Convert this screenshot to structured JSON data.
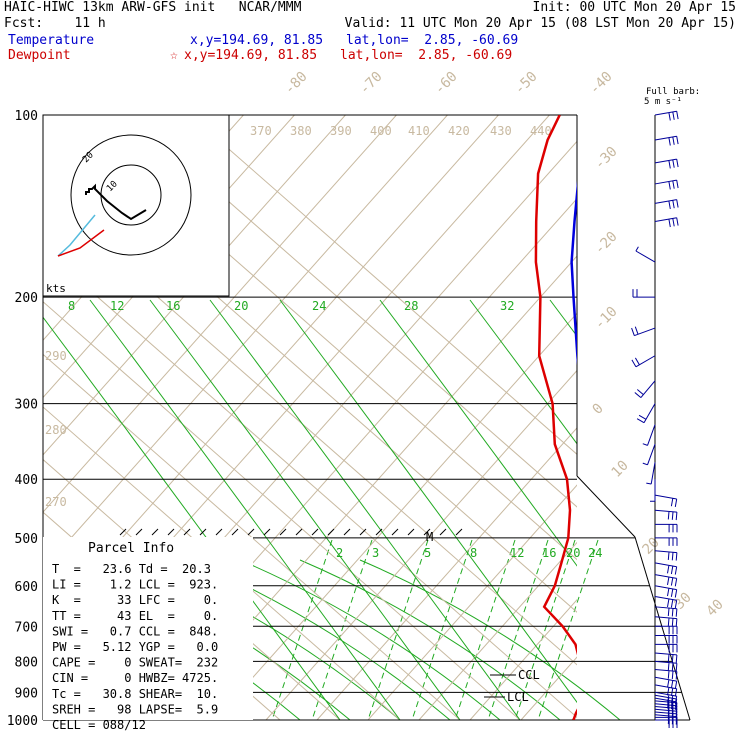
{
  "header": {
    "line1_left": "HAIC-HIWC 13km ARW-GFS init   NCAR/MMM",
    "line1_right": "Init: 00 UTC Mon 20 Apr 15",
    "line2_left": "Fcst:    11 h",
    "line2_right": "Valid: 11 UTC Mon 20 Apr 15 (08 LST Mon 20 Apr 15)",
    "temp_label": "Temperature",
    "temp_xy": "x,y=194.69, 81.85",
    "temp_latlon": "lat,lon=  2.85, -60.69",
    "dew_label": "Dewpoint",
    "dew_xy": "x,y=194.69, 81.85",
    "dew_latlon": "lat,lon=  2.85, -60.69",
    "dew_star": "☆"
  },
  "barb_legend": {
    "title": "Full barb:",
    "value": "5 m s⁻¹"
  },
  "hodograph": {
    "units": "kts",
    "ring_label": "10",
    "outer_label": "20"
  },
  "parcel_info": {
    "title": "Parcel Info",
    "rows": [
      "T  =   23.6 Td =  20.3",
      "LI =    1.2 LCL =  923.",
      "K  =     33 LFC =    0.",
      "TT =     43 EL  =    0.",
      "SWI =   0.7 CCL =  848.",
      "PW =   5.12 YGP =   0.0",
      "CAPE =    0 SWEAT=  232",
      "CIN =     0 HWBZ= 4725.",
      "Tc =   30.8 SHEAR=  10.",
      "SREH =   98 LAPSE=  5.9",
      "CELL = 088/12"
    ]
  },
  "markers": {
    "ccl": "CCL",
    "lcl": "LCL",
    "m": "M"
  },
  "colors": {
    "temperature": "#0000dd",
    "dewpoint": "#dd0000",
    "isotherm": "#c8b9a0",
    "mixing_ratio": "#22aa22",
    "hodo_cyan": "#55bbdd",
    "barb": "#000099"
  },
  "chart_data": {
    "type": "line",
    "yaxis": {
      "label": "",
      "scale": "log",
      "ticks": [
        100,
        200,
        300,
        400,
        500,
        600,
        700,
        800,
        900,
        1000
      ]
    },
    "isotherm_labels": [
      "-80",
      "-70",
      "-60",
      "-50",
      "-40",
      "-30",
      "-20",
      "-10",
      "0",
      "10",
      "20",
      "30",
      "40"
    ],
    "theta_labels": [
      "370",
      "380",
      "390",
      "400",
      "410",
      "420",
      "430",
      "440",
      "290",
      "280",
      "270"
    ],
    "mixing_ratio_labels_upper": [
      "8",
      "12",
      "16",
      "20",
      "24",
      "28",
      "32"
    ],
    "mixing_ratio_labels_lower": [
      "2",
      "3",
      "5",
      "8",
      "12",
      "16",
      "20",
      "24"
    ],
    "series": [
      {
        "name": "Temperature",
        "p": [
          1000,
          975,
          950,
          925,
          900,
          875,
          850,
          800,
          750,
          700,
          650,
          600,
          550,
          500,
          450,
          400,
          350,
          300,
          250,
          200,
          175,
          150,
          125,
          110,
          100
        ],
        "t": [
          23.6,
          21.5,
          19.6,
          18.3,
          17.2,
          15.7,
          14.1,
          11.1,
          8.2,
          5.3,
          2.0,
          -1.4,
          -4.8,
          -8.6,
          -13.0,
          -18.5,
          -25.2,
          -33.3,
          -42.5,
          -53.5,
          -60,
          -66.5,
          -74,
          -77,
          -76
        ]
      },
      {
        "name": "Dewpoint",
        "p": [
          1000,
          975,
          950,
          925,
          900,
          875,
          850,
          800,
          750,
          700,
          650,
          600,
          550,
          500,
          450,
          400,
          350,
          300,
          250,
          200,
          175,
          150,
          125,
          110,
          100
        ],
        "td": [
          20.3,
          19.6,
          19.1,
          18.2,
          16.8,
          15.8,
          14.6,
          11.3,
          7.5,
          1.8,
          -5.2,
          -6.8,
          -9.5,
          -12.5,
          -17.0,
          -23.0,
          -31.5,
          -39.0,
          -50.0,
          -60.0,
          -67.0,
          -74.0,
          -82.0,
          -86.0,
          -88.0
        ]
      }
    ],
    "wind_barbs": {
      "p": [
        1000,
        990,
        980,
        970,
        960,
        950,
        940,
        930,
        920,
        910,
        900,
        875,
        850,
        825,
        800,
        775,
        750,
        725,
        700,
        675,
        650,
        625,
        600,
        575,
        550,
        525,
        500,
        475,
        450,
        425,
        400,
        375,
        350,
        325,
        300,
        275,
        250,
        225,
        200,
        175,
        150,
        140,
        130,
        120,
        110,
        100
      ],
      "dir": [
        90,
        90,
        95,
        95,
        95,
        95,
        95,
        95,
        100,
        100,
        100,
        100,
        100,
        95,
        95,
        95,
        90,
        90,
        90,
        95,
        95,
        100,
        100,
        100,
        100,
        95,
        90,
        90,
        95,
        100,
        180,
        190,
        200,
        200,
        210,
        220,
        240,
        250,
        270,
        300,
        80,
        80,
        80,
        80,
        80,
        80
      ],
      "speed": [
        15,
        15,
        15,
        15,
        15,
        15,
        15,
        15,
        15,
        15,
        15,
        15,
        15,
        15,
        15,
        15,
        15,
        15,
        15,
        15,
        15,
        15,
        15,
        15,
        15,
        15,
        15,
        15,
        15,
        10,
        5,
        5,
        5,
        5,
        10,
        10,
        10,
        10,
        10,
        5,
        15,
        15,
        15,
        15,
        15,
        15
      ]
    },
    "hodograph": {
      "u": [
        -15,
        -15,
        -14,
        -14,
        -13,
        -12,
        -12,
        -8,
        -3,
        0,
        5
      ],
      "v": [
        0,
        1,
        1,
        2,
        2,
        3,
        2,
        -2,
        -6,
        -8,
        -5
      ]
    }
  }
}
